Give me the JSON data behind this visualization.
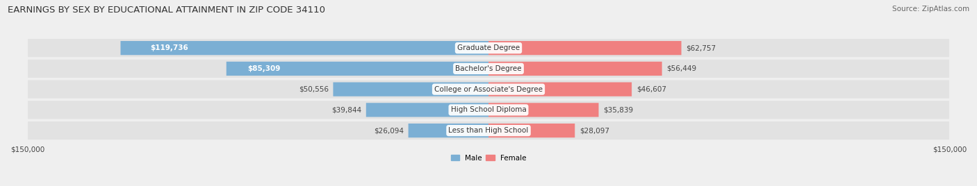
{
  "title": "EARNINGS BY SEX BY EDUCATIONAL ATTAINMENT IN ZIP CODE 34110",
  "source": "Source: ZipAtlas.com",
  "categories": [
    "Less than High School",
    "High School Diploma",
    "College or Associate's Degree",
    "Bachelor's Degree",
    "Graduate Degree"
  ],
  "male_values": [
    26094,
    39844,
    50556,
    85309,
    119736
  ],
  "female_values": [
    28097,
    35839,
    46607,
    56449,
    62757
  ],
  "male_color": "#7bafd4",
  "female_color": "#f08080",
  "male_label": "Male",
  "female_label": "Female",
  "axis_max": 150000,
  "bg_color": "#efefef",
  "bar_bg_color": "#e2e2e2",
  "title_fontsize": 9.5,
  "source_fontsize": 7.5,
  "label_fontsize": 7.5,
  "tick_fontsize": 7.5,
  "inside_label_threshold": 0.55
}
